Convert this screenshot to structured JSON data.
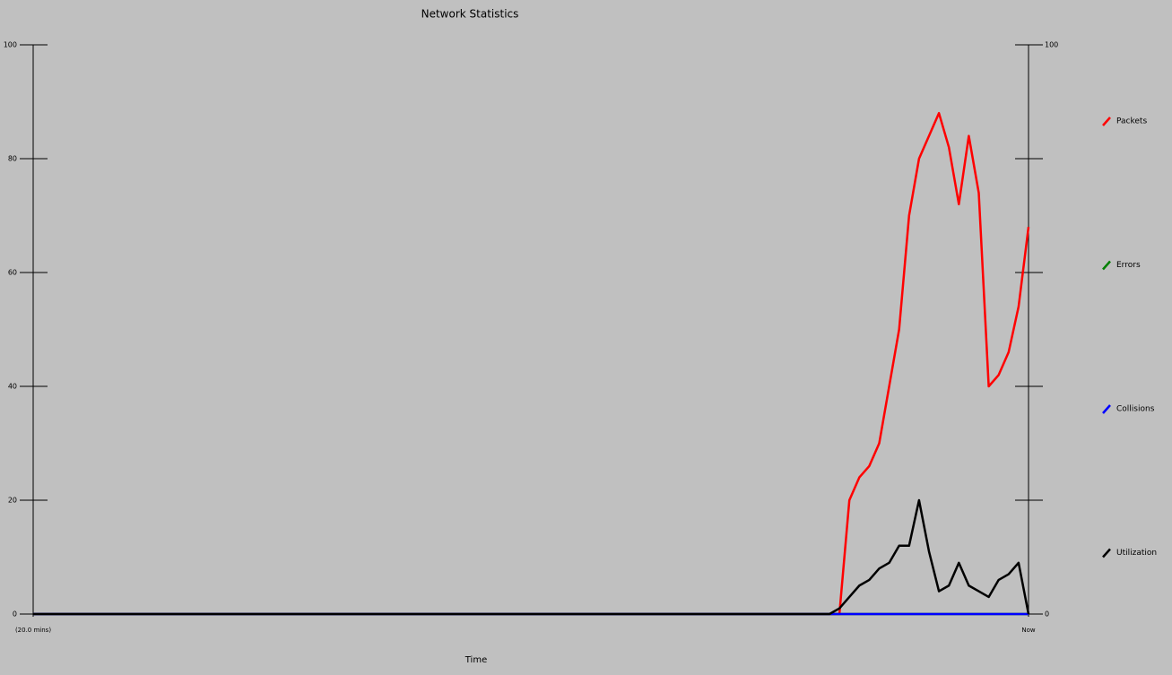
{
  "chart_data": {
    "type": "line",
    "title": "Network Statistics",
    "x_label": "Time",
    "x": [
      0,
      80,
      81,
      82,
      83,
      84,
      85,
      86,
      87,
      88,
      89,
      90,
      91,
      92,
      93,
      94,
      95,
      96,
      97,
      98,
      99,
      100
    ],
    "xlim": [
      0,
      100
    ],
    "xticks": [
      {
        "value": 0,
        "label": "(20.0 mins)"
      },
      {
        "value": 100,
        "label": "Now"
      }
    ],
    "ylim": [
      0,
      100
    ],
    "yticks": [
      0,
      20,
      40,
      60,
      80,
      100
    ],
    "y2lim": [
      0,
      100
    ],
    "y2ticks": [
      0,
      100
    ],
    "series": [
      {
        "name": "Packets",
        "color": "#ff0000",
        "values": [
          0,
          0,
          0,
          20,
          24,
          26,
          30,
          40,
          50,
          70,
          80,
          84,
          88,
          82,
          72,
          84,
          74,
          40,
          42,
          46,
          54,
          68
        ]
      },
      {
        "name": "Errors",
        "color": "#008000",
        "values": [
          0,
          0,
          0,
          0,
          0,
          0,
          0,
          0,
          0,
          0,
          0,
          0,
          0,
          0,
          0,
          0,
          0,
          0,
          0,
          0,
          0,
          0
        ]
      },
      {
        "name": "Collisions",
        "color": "#0000ff",
        "values": [
          0,
          0,
          0,
          0,
          0,
          0,
          0,
          0,
          0,
          0,
          0,
          0,
          0,
          0,
          0,
          0,
          0,
          0,
          0,
          0,
          0,
          0
        ]
      },
      {
        "name": "Utilization",
        "color": "#000000",
        "values": [
          0,
          0,
          1,
          3,
          5,
          6,
          8,
          9,
          12,
          12,
          20,
          11,
          4,
          5,
          9,
          5,
          4,
          3,
          6,
          7,
          9,
          0
        ]
      }
    ],
    "legend": "right"
  }
}
